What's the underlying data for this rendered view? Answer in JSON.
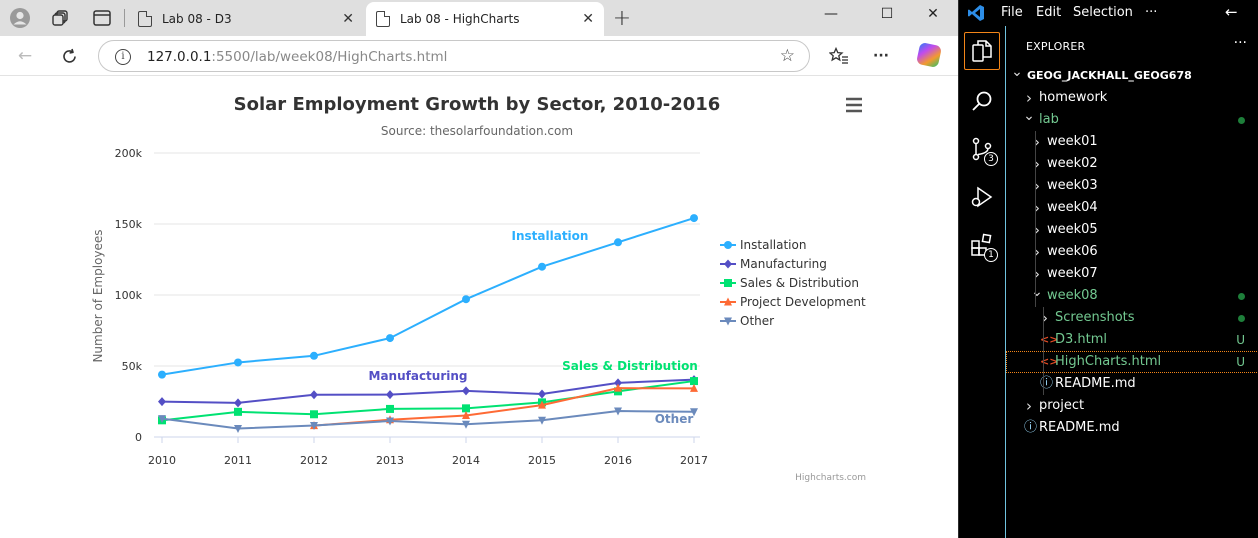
{
  "browser": {
    "tabs": [
      {
        "title": "Lab 08 - D3",
        "active": false
      },
      {
        "title": "Lab 08 - HighCharts",
        "active": true
      }
    ],
    "url_host": "127.0.0.1",
    "url_rest": ":5500/lab/week08/HighCharts.html",
    "icons": [
      "profile-icon",
      "workspaces-icon",
      "tab-actions-icon",
      "back-icon",
      "refresh-icon",
      "site-info-icon",
      "favorite-star-icon",
      "favorites-icon",
      "more-icon",
      "copilot-icon"
    ]
  },
  "chart_data": {
    "type": "line",
    "title": "Solar Employment Growth by Sector, 2010-2016",
    "subtitle": "Source: thesolarfoundation.com",
    "ylabel": "Number of Employees",
    "xlabel": "",
    "x": [
      2010,
      2011,
      2012,
      2013,
      2014,
      2015,
      2016,
      2017
    ],
    "ylim": [
      0,
      200000
    ],
    "yticks": [
      0,
      50000,
      100000,
      150000,
      200000
    ],
    "ytick_labels": [
      "0",
      "50k",
      "100k",
      "150k",
      "200k"
    ],
    "grid": true,
    "legend": "right",
    "credits": "Highcharts.com",
    "series": [
      {
        "name": "Installation",
        "color": "#2caffe",
        "marker": "circle",
        "values": [
          43934,
          52503,
          57177,
          69658,
          97031,
          119931,
          137133,
          154175
        ],
        "label": "Installation",
        "label_color": "#2caffe"
      },
      {
        "name": "Manufacturing",
        "color": "#544fc5",
        "marker": "diamond",
        "values": [
          24916,
          24064,
          29742,
          29851,
          32490,
          30282,
          38121,
          40434
        ],
        "label": "Manufacturing",
        "label_color": "#544fc5"
      },
      {
        "name": "Sales & Distribution",
        "color": "#00e272",
        "marker": "square",
        "values": [
          11744,
          17722,
          16005,
          19771,
          20185,
          24377,
          32147,
          39387
        ],
        "label": "Sales & Distribution",
        "label_color": "#00e272"
      },
      {
        "name": "Project Development",
        "color": "#fe6a35",
        "marker": "triangle",
        "values": [
          null,
          null,
          7988,
          12169,
          15112,
          22452,
          34400,
          34227
        ],
        "label": "",
        "label_color": "#fe6a35"
      },
      {
        "name": "Other",
        "color": "#6b8abc",
        "marker": "triangle-down",
        "values": [
          12908,
          5948,
          8105,
          11248,
          8989,
          11816,
          18274,
          17800
        ],
        "label": "Other",
        "label_color": "#6b8abc"
      }
    ]
  },
  "vscode": {
    "menu": [
      "File",
      "Edit",
      "Selection",
      "···"
    ],
    "explorer_title": "EXPLORER",
    "source_control_badge": "3",
    "extensions_badge": "1",
    "tree": [
      {
        "label": "GEOG_JACKHALL_GEOG678",
        "depth": 0,
        "chev": "v",
        "bold": true
      },
      {
        "label": "homework",
        "depth": 1,
        "chev": ">"
      },
      {
        "label": "lab",
        "depth": 1,
        "chev": "v",
        "green": true,
        "dot": true
      },
      {
        "label": "week01",
        "depth": 2,
        "chev": ">"
      },
      {
        "label": "week02",
        "depth": 2,
        "chev": ">"
      },
      {
        "label": "week03",
        "depth": 2,
        "chev": ">"
      },
      {
        "label": "week04",
        "depth": 2,
        "chev": ">"
      },
      {
        "label": "week05",
        "depth": 2,
        "chev": ">"
      },
      {
        "label": "week06",
        "depth": 2,
        "chev": ">"
      },
      {
        "label": "week07",
        "depth": 2,
        "chev": ">"
      },
      {
        "label": "week08",
        "depth": 2,
        "chev": "v",
        "green": true,
        "dot": true
      },
      {
        "label": "Screenshots",
        "depth": 3,
        "chev": ">",
        "green": true,
        "dot": true
      },
      {
        "label": "D3.html",
        "depth": 3,
        "icon": "html",
        "green": true,
        "status": "U"
      },
      {
        "label": "HighCharts.html",
        "depth": 3,
        "icon": "html",
        "green": true,
        "status": "U",
        "selected": true
      },
      {
        "label": "README.md",
        "depth": 3,
        "icon": "info"
      },
      {
        "label": "project",
        "depth": 1,
        "chev": ">"
      },
      {
        "label": "README.md",
        "depth": 1,
        "icon": "info"
      }
    ]
  }
}
